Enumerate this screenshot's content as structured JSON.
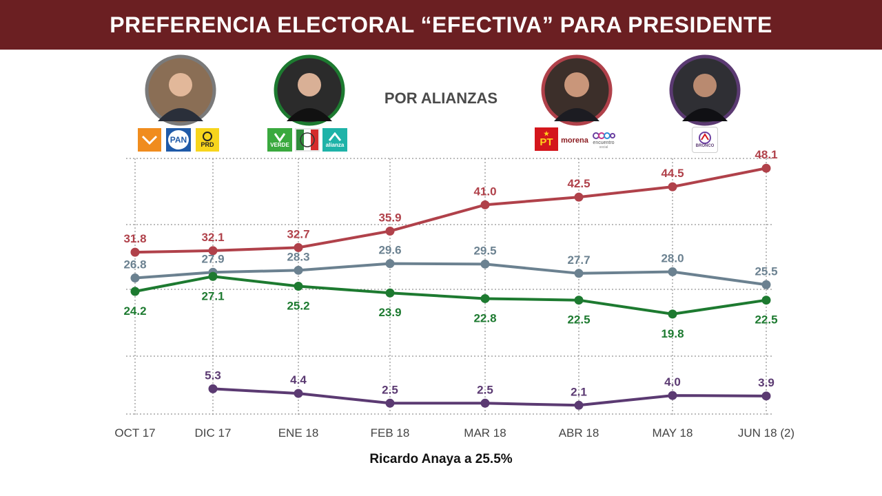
{
  "header": {
    "title": "PREFERENCIA ELECTORAL “EFECTIVA” PARA PRESIDENTE"
  },
  "subtitle": "POR ALIANZAS",
  "footer": "Ricardo Anaya a 25.5%",
  "party_logos": {
    "pan": "PAN",
    "prd": "PRD",
    "verde": "VERDE",
    "alianza": "alianza",
    "pt": "PT",
    "morena": "morena",
    "encuentro": "encuentro",
    "encuentro_sub": "social",
    "bronco": "BRONCO"
  },
  "candidates": [
    {
      "id": "anaya",
      "ring_color": "#7a7a7a",
      "icon": "candidate-photo-icon"
    },
    {
      "id": "meade",
      "ring_color": "#1d7a30",
      "icon": "candidate-photo-icon"
    },
    {
      "id": "amlo",
      "ring_color": "#b0414a",
      "icon": "candidate-photo-icon"
    },
    {
      "id": "bronco",
      "ring_color": "#5b3a72",
      "icon": "candidate-photo-icon"
    }
  ],
  "chart_data": {
    "type": "line",
    "categories": [
      "OCT 17",
      "DIC 17",
      "ENE 18",
      "FEB 18",
      "MAR 18",
      "ABR 18",
      "MAY 18",
      "JUN 18 (2)"
    ],
    "ylim": [
      0,
      50
    ],
    "grid": true,
    "series": [
      {
        "color": "#b0414a",
        "label_position": "above",
        "values": [
          31.8,
          32.1,
          32.7,
          35.9,
          41.0,
          42.5,
          44.5,
          48.1
        ],
        "labels": [
          "31.8",
          "32.1",
          "32.7",
          "35.9",
          "41.0",
          "42.5",
          "44.5",
          "48.1"
        ]
      },
      {
        "color": "#6b8190",
        "label_position": "above",
        "values": [
          26.8,
          27.9,
          28.3,
          29.6,
          29.5,
          27.7,
          28.0,
          25.5
        ],
        "labels": [
          "26.8",
          "27.9",
          "28.3",
          "29.6",
          "29.5",
          "27.7",
          "28.0",
          "25.5"
        ]
      },
      {
        "color": "#1d7a30",
        "label_position": "below",
        "values": [
          24.2,
          27.1,
          25.2,
          23.9,
          22.8,
          22.5,
          19.8,
          22.5
        ],
        "labels": [
          "24.2",
          "27.1",
          "25.2",
          "23.9",
          "22.8",
          "22.5",
          "19.8",
          "22.5"
        ]
      },
      {
        "color": "#5b3a72",
        "label_position": "above",
        "values": [
          null,
          5.3,
          4.4,
          2.5,
          2.5,
          2.1,
          4.0,
          3.9
        ],
        "labels": [
          "",
          "5.3",
          "4.4",
          "2.5",
          "2.5",
          "2.1",
          "4.0",
          "3.9"
        ]
      }
    ]
  }
}
